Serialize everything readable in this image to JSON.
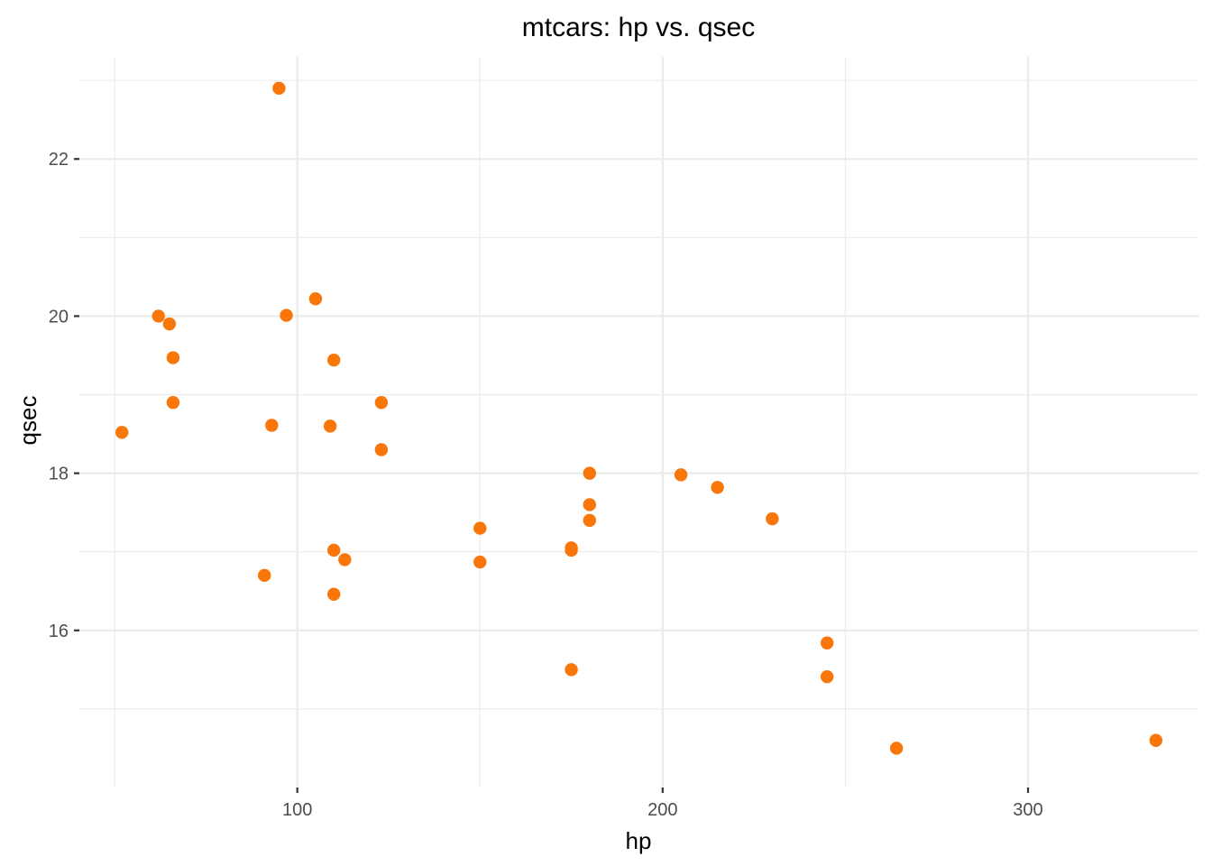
{
  "chart_data": {
    "type": "scatter",
    "title": "mtcars: hp vs. qsec",
    "xlabel": "hp",
    "ylabel": "qsec",
    "xlim": [
      40.35,
      346.65
    ],
    "ylim": [
      14.0,
      23.3
    ],
    "x_ticks": [
      100,
      200,
      300
    ],
    "x_tick_labels": [
      "100",
      "200",
      "300"
    ],
    "x_minor_ticks": [
      50,
      150,
      250
    ],
    "y_ticks": [
      16,
      18,
      20,
      22
    ],
    "y_tick_labels": [
      "16",
      "18",
      "20",
      "22"
    ],
    "y_minor_ticks": [
      15,
      17,
      19,
      21,
      23
    ],
    "grid": true,
    "point_color": "#F8760A",
    "points": [
      {
        "x": 110,
        "y": 16.46
      },
      {
        "x": 110,
        "y": 17.02
      },
      {
        "x": 93,
        "y": 18.61
      },
      {
        "x": 110,
        "y": 19.44
      },
      {
        "x": 175,
        "y": 17.02
      },
      {
        "x": 105,
        "y": 20.22
      },
      {
        "x": 245,
        "y": 15.84
      },
      {
        "x": 62,
        "y": 20.0
      },
      {
        "x": 95,
        "y": 22.9
      },
      {
        "x": 123,
        "y": 18.3
      },
      {
        "x": 123,
        "y": 18.9
      },
      {
        "x": 180,
        "y": 17.4
      },
      {
        "x": 180,
        "y": 17.6
      },
      {
        "x": 180,
        "y": 18.0
      },
      {
        "x": 205,
        "y": 17.98
      },
      {
        "x": 215,
        "y": 17.82
      },
      {
        "x": 230,
        "y": 17.42
      },
      {
        "x": 66,
        "y": 19.47
      },
      {
        "x": 52,
        "y": 18.52
      },
      {
        "x": 65,
        "y": 19.9
      },
      {
        "x": 97,
        "y": 20.01
      },
      {
        "x": 150,
        "y": 16.87
      },
      {
        "x": 150,
        "y": 17.3
      },
      {
        "x": 245,
        "y": 15.41
      },
      {
        "x": 175,
        "y": 17.05
      },
      {
        "x": 66,
        "y": 18.9
      },
      {
        "x": 91,
        "y": 16.7
      },
      {
        "x": 113,
        "y": 16.9
      },
      {
        "x": 264,
        "y": 14.5
      },
      {
        "x": 175,
        "y": 15.5
      },
      {
        "x": 335,
        "y": 14.6
      },
      {
        "x": 109,
        "y": 18.6
      }
    ]
  }
}
